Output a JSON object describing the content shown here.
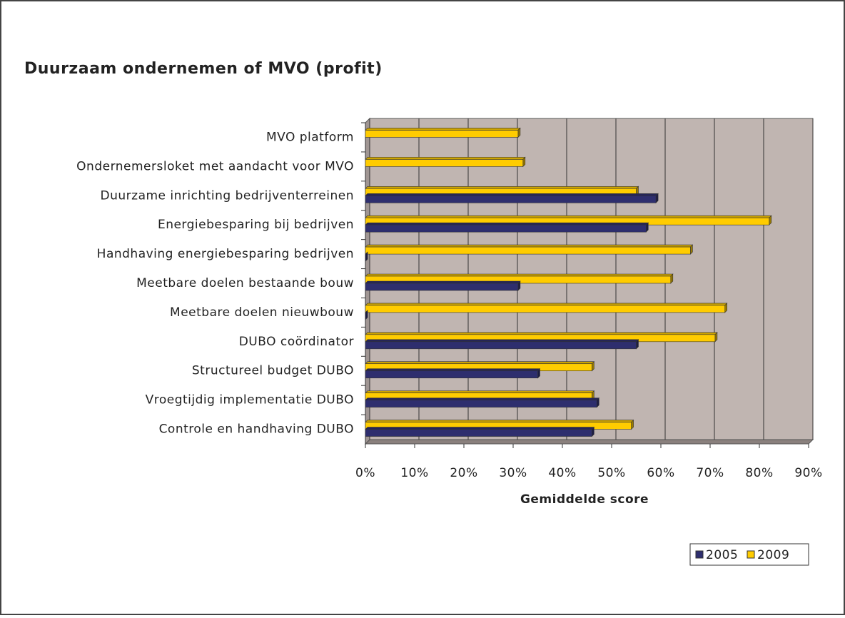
{
  "chart_data": {
    "type": "bar",
    "orientation": "horizontal",
    "title": "Duurzaam ondernemen of MVO (profit)",
    "x_label": "Gemiddelde score",
    "categories": [
      "MVO platform",
      "Ondernemersloket met aandacht voor MVO",
      "Duurzame inrichting bedrijventerreinen",
      "Energiebesparing bij bedrijven",
      "Handhaving energiebesparing bedrijven",
      "Meetbare doelen bestaande bouw",
      "Meetbare doelen nieuwbouw",
      "DUBO coördinator",
      "Structureel budget DUBO",
      "Vroegtijdig implementatie DUBO",
      "Controle en handhaving DUBO"
    ],
    "series": [
      {
        "name": "2005",
        "color": "#2e2e6e",
        "values": [
          null,
          null,
          59,
          57,
          0,
          31,
          0,
          55,
          35,
          47,
          46
        ]
      },
      {
        "name": "2009",
        "color": "#ffcc00",
        "values": [
          31,
          32,
          55,
          82,
          66,
          62,
          73,
          71,
          46,
          46,
          54
        ]
      }
    ],
    "xlim": [
      0,
      90
    ],
    "xticks": [
      {
        "value": 0,
        "label": "0%"
      },
      {
        "value": 10,
        "label": "10%"
      },
      {
        "value": 20,
        "label": "20%"
      },
      {
        "value": 30,
        "label": "30%"
      },
      {
        "value": 40,
        "label": "40%"
      },
      {
        "value": 50,
        "label": "50%"
      },
      {
        "value": 60,
        "label": "60%"
      },
      {
        "value": 70,
        "label": "70%"
      },
      {
        "value": 80,
        "label": "80%"
      },
      {
        "value": 90,
        "label": "90%"
      }
    ],
    "grid": true,
    "legend": "bottom-right"
  }
}
